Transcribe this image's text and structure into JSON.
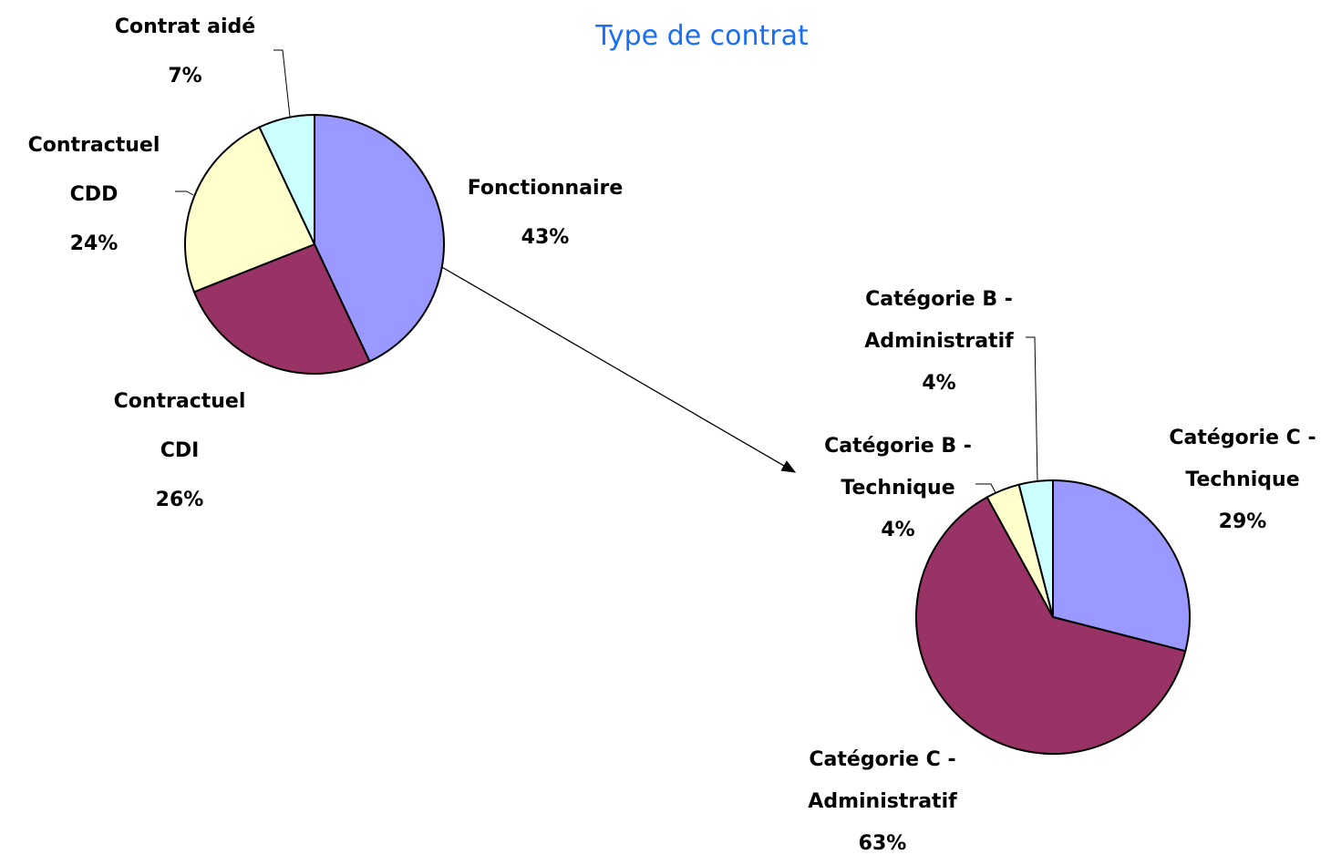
{
  "chart_data": [
    {
      "type": "pie",
      "title": "Type de contrat",
      "categories": [
        "Fonctionnaire",
        "Contractuel CDI",
        "Contractuel CDD",
        "Contrat aidé"
      ],
      "values": [
        43,
        26,
        24,
        7
      ],
      "value_labels": [
        "43%",
        "26%",
        "24%",
        "7%"
      ],
      "colors": [
        "#9999ff",
        "#993366",
        "#ffffcc",
        "#ccffff"
      ]
    },
    {
      "type": "pie",
      "categories": [
        "Catégorie C - Technique",
        "Catégorie C - Administratif",
        "Catégorie B - Technique",
        "Catégorie B - Administratif"
      ],
      "values": [
        29,
        63,
        4,
        4
      ],
      "value_labels": [
        "29%",
        "63%",
        "4%",
        "4%"
      ],
      "colors": [
        "#9999ff",
        "#993366",
        "#ffffcc",
        "#ccffff"
      ]
    }
  ]
}
